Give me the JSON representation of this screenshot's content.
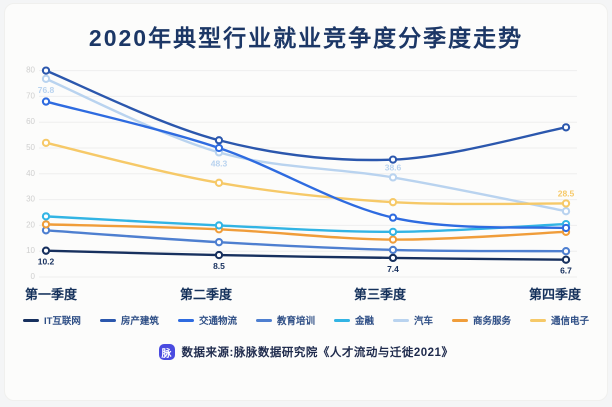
{
  "chart_data": {
    "type": "line",
    "title": "2020年典型行业就业竞争度分季度走势",
    "categories": [
      "第一季度",
      "第二季度",
      "第三季度",
      "第四季度"
    ],
    "series": [
      {
        "name": "IT互联网",
        "color": "#17305e",
        "values": [
          10.2,
          8.5,
          7.4,
          6.7
        ]
      },
      {
        "name": "房产建筑",
        "color": "#2b57ad",
        "values": [
          80.0,
          53.0,
          45.5,
          58.0
        ]
      },
      {
        "name": "交通物流",
        "color": "#2e6be0",
        "values": [
          68.0,
          50.0,
          23.0,
          19.0
        ]
      },
      {
        "name": "教育培训",
        "color": "#4e7fd0",
        "values": [
          18.1,
          13.5,
          10.5,
          10.0
        ]
      },
      {
        "name": "金融",
        "color": "#32b4e4",
        "values": [
          23.5,
          20.0,
          17.5,
          20.5
        ]
      },
      {
        "name": "汽车",
        "color": "#b9d3ef",
        "values": [
          76.8,
          48.3,
          38.6,
          25.5
        ]
      },
      {
        "name": "商务服务",
        "color": "#f09d3a",
        "values": [
          20.4,
          18.5,
          14.5,
          17.5
        ]
      },
      {
        "name": "通信电子",
        "color": "#f6c968",
        "values": [
          52.0,
          36.5,
          29.0,
          28.5
        ]
      }
    ],
    "point_labels": [
      {
        "series": "IT互联网",
        "point": 0,
        "text": "10.2",
        "pos": "below"
      },
      {
        "series": "IT互联网",
        "point": 1,
        "text": "8.5",
        "pos": "below"
      },
      {
        "series": "IT互联网",
        "point": 2,
        "text": "7.4",
        "pos": "below"
      },
      {
        "series": "IT互联网",
        "point": 3,
        "text": "6.7",
        "pos": "below"
      },
      {
        "series": "汽车",
        "point": 0,
        "text": "76.8",
        "pos": "below"
      },
      {
        "series": "汽车",
        "point": 1,
        "text": "48.3",
        "pos": "below"
      },
      {
        "series": "汽车",
        "point": 2,
        "text": "38.6",
        "pos": "above"
      },
      {
        "series": "通信电子",
        "point": 3,
        "text": "28.5",
        "pos": "above"
      }
    ],
    "ylim": [
      0,
      80
    ],
    "ytick_step": 10,
    "grid": true,
    "legend_position": "bottom",
    "xlabel": "",
    "ylabel": ""
  },
  "footer": {
    "badge_text": "脉",
    "badge_color": "#4a4be0",
    "source_text": "数据来源:脉脉数据研究院《人才流动与迁徙2021》"
  }
}
